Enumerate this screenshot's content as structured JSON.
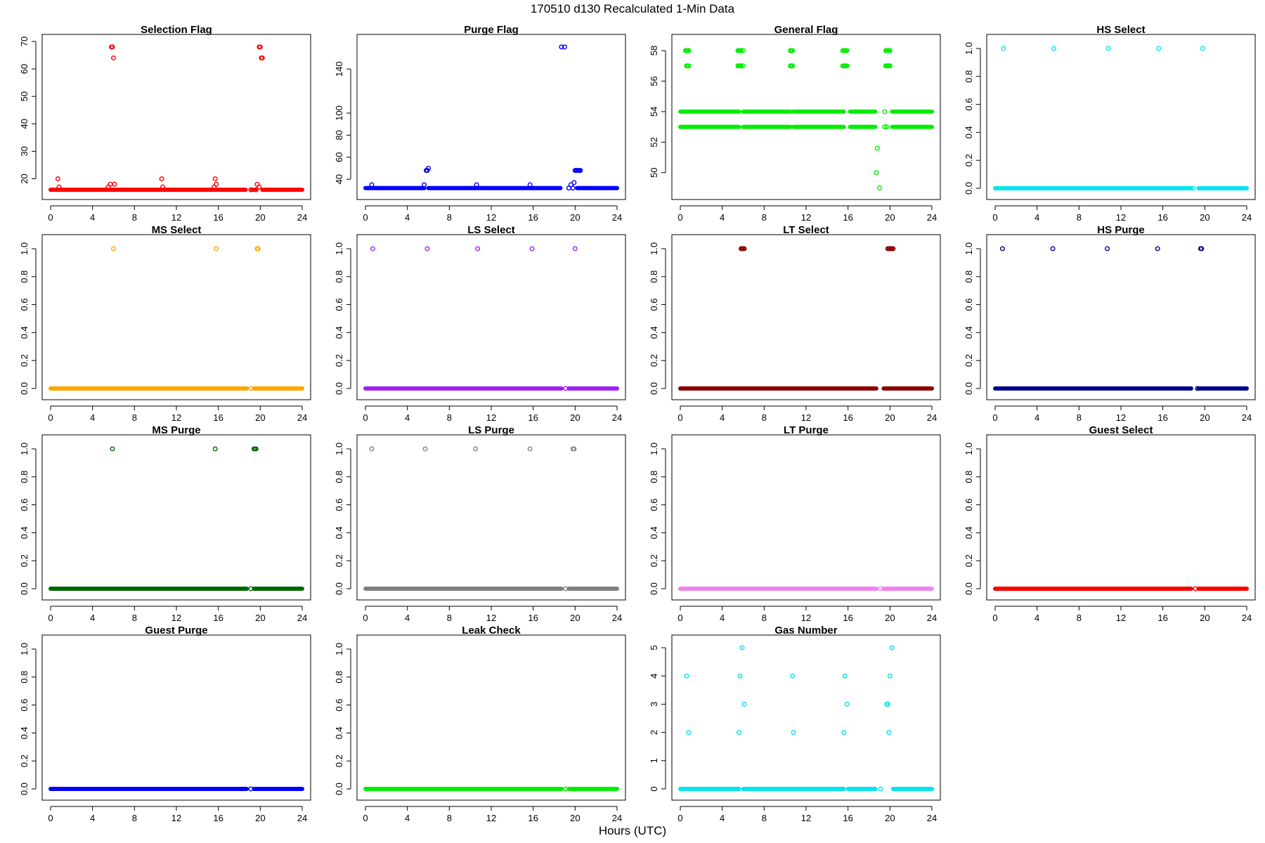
{
  "figure": {
    "title": "170510   d130   Recalculated 1-Min Data",
    "xlabel": "Hours (UTC)"
  },
  "chart_data": [
    {
      "type": "scatter",
      "title": "Selection Flag",
      "color": "#ff0000",
      "xlim": [
        0,
        24
      ],
      "ylim": [
        15,
        70
      ],
      "yticks": [
        20,
        30,
        40,
        50,
        60,
        70
      ],
      "ytick_labels": [
        "20",
        "30",
        "40",
        "50",
        "60",
        "70"
      ],
      "baseline": [
        {
          "y": 16,
          "segments": [
            [
              0,
              18.6
            ],
            [
              19.2,
              19.6
            ],
            [
              20.2,
              24
            ]
          ]
        }
      ],
      "points": [
        [
          0.7,
          20
        ],
        [
          0.8,
          17
        ],
        [
          5.5,
          17
        ],
        [
          5.7,
          18
        ],
        [
          5.8,
          68
        ],
        [
          5.9,
          68
        ],
        [
          6.0,
          64
        ],
        [
          6.1,
          18
        ],
        [
          10.6,
          20
        ],
        [
          10.7,
          17
        ],
        [
          15.6,
          17
        ],
        [
          15.7,
          20
        ],
        [
          15.8,
          18
        ],
        [
          19.1,
          16
        ],
        [
          19.6,
          16
        ],
        [
          19.7,
          18
        ],
        [
          19.9,
          17
        ],
        [
          19.9,
          68
        ],
        [
          20.0,
          68
        ],
        [
          20.1,
          64
        ],
        [
          20.2,
          64
        ]
      ]
    },
    {
      "type": "scatter",
      "title": "Purge Flag",
      "color": "#0000ff",
      "xlim": [
        0,
        24
      ],
      "ylim": [
        28,
        165
      ],
      "yticks": [
        40,
        60,
        80,
        100,
        140
      ],
      "ytick_labels": [
        "40",
        "60",
        "80",
        "100",
        "140"
      ],
      "baseline": [
        {
          "y": 32,
          "segments": [
            [
              0,
              5.6
            ],
            [
              6.0,
              18.6
            ],
            [
              20.2,
              24
            ]
          ]
        }
      ],
      "points": [
        [
          0.6,
          35
        ],
        [
          5.6,
          35
        ],
        [
          5.8,
          48
        ],
        [
          5.9,
          48
        ],
        [
          6.0,
          50
        ],
        [
          10.6,
          35
        ],
        [
          15.7,
          35
        ],
        [
          18.7,
          160
        ],
        [
          19.0,
          160
        ],
        [
          19.4,
          32
        ],
        [
          19.6,
          35
        ],
        [
          19.8,
          32
        ],
        [
          19.9,
          37
        ],
        [
          20.0,
          48
        ],
        [
          20.1,
          48
        ],
        [
          20.2,
          48
        ],
        [
          20.3,
          48
        ],
        [
          20.4,
          48
        ],
        [
          20.5,
          48
        ]
      ]
    },
    {
      "type": "scatter",
      "title": "General Flag",
      "color": "#00ee00",
      "xlim": [
        0,
        24
      ],
      "ylim": [
        48.7,
        58.6
      ],
      "yticks": [
        50,
        52,
        54,
        56,
        58
      ],
      "ytick_labels": [
        "50",
        "52",
        "54",
        "56",
        "58"
      ],
      "baseline": [
        {
          "y": 54,
          "segments": [
            [
              0,
              5.6
            ],
            [
              6.0,
              10.5
            ],
            [
              10.8,
              15.6
            ],
            [
              16.2,
              18.6
            ],
            [
              20.2,
              24
            ]
          ]
        },
        {
          "y": 53,
          "segments": [
            [
              0,
              5.6
            ],
            [
              6.0,
              10.5
            ],
            [
              10.8,
              15.6
            ],
            [
              16.2,
              18.6
            ],
            [
              20.2,
              24
            ]
          ]
        }
      ],
      "points": [
        [
          0.5,
          58
        ],
        [
          0.6,
          58
        ],
        [
          0.7,
          58
        ],
        [
          0.8,
          58
        ],
        [
          0.6,
          57
        ],
        [
          0.7,
          57
        ],
        [
          0.8,
          57
        ],
        [
          5.5,
          58
        ],
        [
          5.6,
          58
        ],
        [
          5.7,
          58
        ],
        [
          5.8,
          58
        ],
        [
          6.0,
          58
        ],
        [
          5.5,
          57
        ],
        [
          5.6,
          57
        ],
        [
          5.7,
          57
        ],
        [
          5.8,
          57
        ],
        [
          6.0,
          57
        ],
        [
          10.5,
          58
        ],
        [
          10.6,
          58
        ],
        [
          10.7,
          58
        ],
        [
          10.5,
          57
        ],
        [
          10.6,
          57
        ],
        [
          10.7,
          57
        ],
        [
          15.5,
          58
        ],
        [
          15.6,
          58
        ],
        [
          15.7,
          58
        ],
        [
          15.8,
          58
        ],
        [
          15.9,
          58
        ],
        [
          15.5,
          57
        ],
        [
          15.6,
          57
        ],
        [
          15.7,
          57
        ],
        [
          15.8,
          57
        ],
        [
          15.9,
          57
        ],
        [
          19.6,
          58
        ],
        [
          19.7,
          58
        ],
        [
          19.8,
          58
        ],
        [
          19.9,
          58
        ],
        [
          20.0,
          58
        ],
        [
          19.6,
          57
        ],
        [
          19.7,
          57
        ],
        [
          19.8,
          57
        ],
        [
          19.9,
          57
        ],
        [
          20.0,
          57
        ],
        [
          19.5,
          54
        ],
        [
          19.5,
          53
        ],
        [
          19.7,
          53
        ],
        [
          18.8,
          51.6
        ],
        [
          18.7,
          50
        ],
        [
          19.0,
          49
        ]
      ]
    },
    {
      "type": "scatter",
      "title": "HS Select",
      "color": "#00e5ee",
      "xlim": [
        0,
        24
      ],
      "ylim": [
        -0.03,
        1.05
      ],
      "yticks": [
        0,
        0.2,
        0.4,
        0.6,
        0.8,
        1.0
      ],
      "ytick_labels": [
        "0.0",
        "0.2",
        "0.4",
        "0.6",
        "0.8",
        "1.0"
      ],
      "baseline": [
        {
          "y": 0,
          "segments": [
            [
              0,
              18.7
            ],
            [
              19.4,
              24
            ]
          ]
        }
      ],
      "points": [
        [
          0.8,
          1
        ],
        [
          5.6,
          1
        ],
        [
          10.8,
          1
        ],
        [
          15.6,
          1
        ],
        [
          19.8,
          1
        ],
        [
          18.9,
          0
        ]
      ]
    },
    {
      "type": "scatter",
      "title": "MS Select",
      "color": "#ffa500",
      "xlim": [
        0,
        24
      ],
      "ylim": [
        -0.03,
        1.05
      ],
      "yticks": [
        0,
        0.2,
        0.4,
        0.6,
        0.8,
        1.0
      ],
      "ytick_labels": [
        "0.0",
        "0.2",
        "0.4",
        "0.6",
        "0.8",
        "1.0"
      ],
      "baseline": [
        {
          "y": 0,
          "segments": [
            [
              0,
              18.7
            ],
            [
              19.4,
              24
            ]
          ]
        }
      ],
      "points": [
        [
          6.0,
          1
        ],
        [
          15.8,
          1
        ],
        [
          19.7,
          1
        ],
        [
          19.8,
          1
        ],
        [
          19.1,
          0
        ]
      ]
    },
    {
      "type": "scatter",
      "title": "LS Select",
      "color": "#a020f0",
      "xlim": [
        0,
        24
      ],
      "ylim": [
        -0.03,
        1.05
      ],
      "yticks": [
        0,
        0.2,
        0.4,
        0.6,
        0.8,
        1.0
      ],
      "ytick_labels": [
        "0.0",
        "0.2",
        "0.4",
        "0.6",
        "0.8",
        "1.0"
      ],
      "baseline": [
        {
          "y": 0,
          "segments": [
            [
              0,
              18.7
            ],
            [
              19.4,
              24
            ]
          ]
        }
      ],
      "points": [
        [
          0.7,
          1
        ],
        [
          5.9,
          1
        ],
        [
          10.7,
          1
        ],
        [
          15.9,
          1
        ],
        [
          20.0,
          1
        ],
        [
          19.1,
          0
        ]
      ]
    },
    {
      "type": "scatter",
      "title": "LT Select",
      "color": "#8b0000",
      "xlim": [
        0,
        24
      ],
      "ylim": [
        -0.03,
        1.05
      ],
      "yticks": [
        0,
        0.2,
        0.4,
        0.6,
        0.8,
        1.0
      ],
      "ytick_labels": [
        "0.0",
        "0.2",
        "0.4",
        "0.6",
        "0.8",
        "1.0"
      ],
      "baseline": [
        {
          "y": 0,
          "segments": [
            [
              0,
              18.7
            ],
            [
              19.4,
              24
            ]
          ]
        }
      ],
      "points": [
        [
          5.8,
          1
        ],
        [
          5.9,
          1
        ],
        [
          6.0,
          1
        ],
        [
          6.1,
          1
        ],
        [
          19.8,
          1
        ],
        [
          19.9,
          1
        ],
        [
          20.0,
          1
        ],
        [
          20.1,
          1
        ],
        [
          20.2,
          1
        ],
        [
          20.3,
          1
        ]
      ]
    },
    {
      "type": "scatter",
      "title": "HS Purge",
      "color": "#00008b",
      "xlim": [
        0,
        24
      ],
      "ylim": [
        -0.03,
        1.05
      ],
      "yticks": [
        0,
        0.2,
        0.4,
        0.6,
        0.8,
        1.0
      ],
      "ytick_labels": [
        "0.0",
        "0.2",
        "0.4",
        "0.6",
        "0.8",
        "1.0"
      ],
      "baseline": [
        {
          "y": 0,
          "segments": [
            [
              0,
              18.7
            ],
            [
              19.4,
              24
            ]
          ]
        }
      ],
      "points": [
        [
          0.7,
          1
        ],
        [
          5.5,
          1
        ],
        [
          10.7,
          1
        ],
        [
          15.5,
          1
        ],
        [
          19.6,
          1
        ],
        [
          19.7,
          1
        ],
        [
          19.3,
          0
        ]
      ]
    },
    {
      "type": "scatter",
      "title": "MS Purge",
      "color": "#006400",
      "xlim": [
        0,
        24
      ],
      "ylim": [
        -0.03,
        1.05
      ],
      "yticks": [
        0,
        0.2,
        0.4,
        0.6,
        0.8,
        1.0
      ],
      "ytick_labels": [
        "0.0",
        "0.2",
        "0.4",
        "0.6",
        "0.8",
        "1.0"
      ],
      "baseline": [
        {
          "y": 0,
          "segments": [
            [
              0,
              18.7
            ],
            [
              19.4,
              24
            ]
          ]
        }
      ],
      "points": [
        [
          5.9,
          1
        ],
        [
          15.7,
          1
        ],
        [
          19.4,
          1
        ],
        [
          19.5,
          1
        ],
        [
          19.6,
          1
        ],
        [
          19.1,
          0
        ]
      ]
    },
    {
      "type": "scatter",
      "title": "LS Purge",
      "color": "#808080",
      "xlim": [
        0,
        24
      ],
      "ylim": [
        -0.03,
        1.05
      ],
      "yticks": [
        0,
        0.2,
        0.4,
        0.6,
        0.8,
        1.0
      ],
      "ytick_labels": [
        "0.0",
        "0.2",
        "0.4",
        "0.6",
        "0.8",
        "1.0"
      ],
      "baseline": [
        {
          "y": 0,
          "segments": [
            [
              0,
              18.7
            ],
            [
              19.4,
              24
            ]
          ]
        }
      ],
      "points": [
        [
          0.6,
          1
        ],
        [
          5.7,
          1
        ],
        [
          10.5,
          1
        ],
        [
          15.7,
          1
        ],
        [
          19.8,
          1
        ],
        [
          19.9,
          1
        ],
        [
          19.1,
          0
        ]
      ]
    },
    {
      "type": "scatter",
      "title": "LT Purge",
      "color": "#ee82ee",
      "xlim": [
        0,
        24
      ],
      "ylim": [
        -0.03,
        1.05
      ],
      "yticks": [
        0,
        0.2,
        0.4,
        0.6,
        0.8,
        1.0
      ],
      "ytick_labels": [
        "0.0",
        "0.2",
        "0.4",
        "0.6",
        "0.8",
        "1.0"
      ],
      "baseline": [
        {
          "y": 0,
          "segments": [
            [
              0,
              18.7
            ],
            [
              19.4,
              24
            ]
          ]
        }
      ],
      "points": [
        [
          19.1,
          0
        ]
      ]
    },
    {
      "type": "scatter",
      "title": "Guest Select",
      "color": "#ff0000",
      "xlim": [
        0,
        24
      ],
      "ylim": [
        -0.03,
        1.05
      ],
      "yticks": [
        0,
        0.2,
        0.4,
        0.6,
        0.8,
        1.0
      ],
      "ytick_labels": [
        "0.0",
        "0.2",
        "0.4",
        "0.6",
        "0.8",
        "1.0"
      ],
      "baseline": [
        {
          "y": 0,
          "segments": [
            [
              0,
              18.7
            ],
            [
              19.4,
              24
            ]
          ]
        }
      ],
      "points": [
        [
          19.1,
          0
        ]
      ]
    },
    {
      "type": "scatter",
      "title": "Guest Purge",
      "color": "#0000ff",
      "xlim": [
        0,
        24
      ],
      "ylim": [
        -0.03,
        1.05
      ],
      "yticks": [
        0,
        0.2,
        0.4,
        0.6,
        0.8,
        1.0
      ],
      "ytick_labels": [
        "0.0",
        "0.2",
        "0.4",
        "0.6",
        "0.8",
        "1.0"
      ],
      "baseline": [
        {
          "y": 0,
          "segments": [
            [
              0,
              18.7
            ],
            [
              19.4,
              24
            ]
          ]
        }
      ],
      "points": [
        [
          19.1,
          0
        ]
      ]
    },
    {
      "type": "scatter",
      "title": "Leak Check",
      "color": "#00ee00",
      "xlim": [
        0,
        24
      ],
      "ylim": [
        -0.03,
        1.05
      ],
      "yticks": [
        0,
        0.2,
        0.4,
        0.6,
        0.8,
        1.0
      ],
      "ytick_labels": [
        "0.0",
        "0.2",
        "0.4",
        "0.6",
        "0.8",
        "1.0"
      ],
      "baseline": [
        {
          "y": 0,
          "segments": [
            [
              0,
              18.7
            ],
            [
              19.4,
              24
            ]
          ]
        }
      ],
      "points": [
        [
          19.1,
          0
        ]
      ]
    },
    {
      "type": "scatter",
      "title": "Gas Number",
      "color": "#00e5ee",
      "xlim": [
        0,
        24
      ],
      "ylim": [
        -0.15,
        5.2
      ],
      "yticks": [
        0,
        1,
        2,
        3,
        4,
        5
      ],
      "ytick_labels": [
        "0",
        "1",
        "2",
        "3",
        "4",
        "5"
      ],
      "baseline": [
        {
          "y": 0,
          "segments": [
            [
              0,
              5.6
            ],
            [
              6.0,
              15.6
            ],
            [
              16.0,
              18.6
            ],
            [
              20.3,
              24
            ]
          ]
        }
      ],
      "points": [
        [
          0.6,
          4
        ],
        [
          0.8,
          2
        ],
        [
          5.7,
          4
        ],
        [
          5.6,
          2
        ],
        [
          5.9,
          5
        ],
        [
          6.1,
          3
        ],
        [
          10.7,
          4
        ],
        [
          10.8,
          2
        ],
        [
          15.7,
          4
        ],
        [
          15.9,
          3
        ],
        [
          15.6,
          2
        ],
        [
          19.1,
          0
        ],
        [
          19.7,
          3
        ],
        [
          19.8,
          3
        ],
        [
          19.9,
          2
        ],
        [
          20.0,
          4
        ],
        [
          20.2,
          5
        ]
      ]
    }
  ]
}
